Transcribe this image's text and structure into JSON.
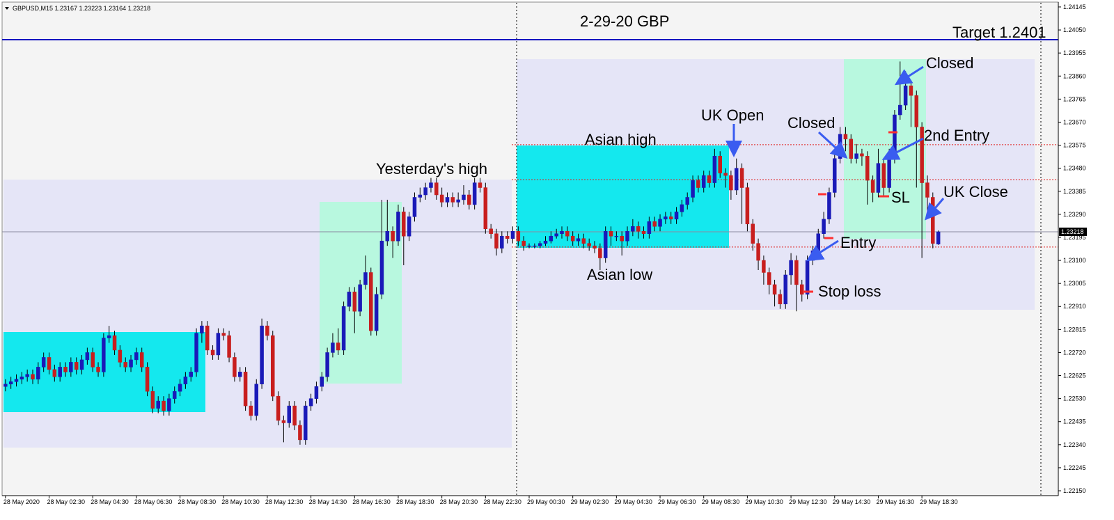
{
  "header": "GBPUSD,M15  1.23167 1.23223 1.23164 1.23218",
  "chart_data": {
    "type": "candlestick",
    "title": "2-29-20  GBP",
    "up_color": "#1a1ab8",
    "down_color": "#c81e1e",
    "open": [
      1.2258,
      1.2259,
      1.226,
      1.2261,
      1.2262,
      1.2263,
      1.2261,
      1.2266,
      1.227,
      1.2265,
      1.2262,
      1.2266,
      1.2264,
      1.2268,
      1.2265,
      1.2269,
      1.2272,
      1.2266,
      1.2264,
      1.2278,
      1.2279,
      1.2273,
      1.2268,
      1.2266,
      1.2269,
      1.2272,
      1.2266,
      1.2256,
      1.2249,
      1.2252,
      1.2248,
      1.2253,
      1.2256,
      1.2259,
      1.2262,
      1.2264,
      1.228,
      1.2283,
      1.2273,
      1.2271,
      1.228,
      1.2279,
      1.227,
      1.2262,
      1.2264,
      1.225,
      1.2246,
      1.2259,
      1.2283,
      1.2279,
      1.2254,
      1.2244,
      1.2243,
      1.225,
      1.2242,
      1.2236,
      1.225,
      1.2253,
      1.2258,
      1.2262,
      1.2272,
      1.2276,
      1.2273,
      1.2291,
      1.2297,
      1.2289,
      1.23,
      1.2305,
      1.2281,
      1.2296,
      1.2318,
      1.2322,
      1.2318,
      1.233,
      1.232,
      1.2328,
      1.2336,
      1.2337,
      1.234,
      1.2342,
      1.2337,
      1.2334,
      1.2336,
      1.2334,
      1.2335,
      1.2337,
      1.2333,
      1.2342,
      1.234,
      1.2323,
      1.2321,
      1.2315,
      1.232,
      1.2319,
      1.2322,
      1.2318,
      1.2316,
      1.2316,
      1.2316,
      1.2317,
      1.2318,
      1.232,
      1.2321,
      1.2322,
      1.232,
      1.2318,
      1.2319,
      1.2317,
      1.2316,
      1.2315,
      1.2311,
      1.2322,
      1.232,
      1.232,
      1.2318,
      1.2322,
      1.2324,
      1.2322,
      1.2321,
      1.2326,
      1.2324,
      1.2327,
      1.2328,
      1.2327,
      1.233,
      1.2333,
      1.2336,
      1.2343,
      1.234,
      1.2345,
      1.2342,
      1.2353,
      1.2346,
      1.2345,
      1.2339,
      1.2348,
      1.234,
      1.2325,
      1.2317,
      1.231,
      1.2305,
      1.23,
      1.2296,
      1.2292,
      1.2304,
      1.231,
      1.23,
      1.2296,
      1.231,
      1.2314,
      1.2321,
      1.2327,
      1.2338,
      1.2352,
      1.2362,
      1.236,
      1.2352,
      1.2354,
      1.2353,
      1.2343,
      1.2338,
      1.235,
      1.234,
      1.2352,
      1.237,
      1.2374,
      1.2382,
      1.2378,
      1.2365,
      1.2342,
      1.2336,
      1.23167
    ],
    "high": [
      1.2261,
      1.2262,
      1.2263,
      1.2264,
      1.2265,
      1.2265,
      1.2268,
      1.2272,
      1.2272,
      1.2267,
      1.2268,
      1.2268,
      1.227,
      1.227,
      1.2271,
      1.2274,
      1.2274,
      1.2268,
      1.228,
      1.2283,
      1.2281,
      1.2275,
      1.227,
      1.2271,
      1.2274,
      1.2274,
      1.2268,
      1.2258,
      1.2254,
      1.2254,
      1.2255,
      1.2258,
      1.2261,
      1.2264,
      1.2266,
      1.2282,
      1.2285,
      1.2285,
      1.2275,
      1.2282,
      1.2282,
      1.2281,
      1.2272,
      1.2266,
      1.2266,
      1.2252,
      1.2261,
      1.2286,
      1.2285,
      1.2281,
      1.2256,
      1.2246,
      1.2252,
      1.2252,
      1.2244,
      1.2252,
      1.2255,
      1.226,
      1.2264,
      1.2274,
      1.228,
      1.2282,
      1.2293,
      1.2299,
      1.2299,
      1.2302,
      1.2312,
      1.2307,
      1.2299,
      1.2335,
      1.2335,
      1.2324,
      1.2333,
      1.2332,
      1.233,
      1.2338,
      1.234,
      1.2342,
      1.2344,
      1.2344,
      1.234,
      1.2338,
      1.2338,
      1.2338,
      1.2341,
      1.2339,
      1.2344,
      1.2344,
      1.2342,
      1.2325,
      1.2323,
      1.2322,
      1.2322,
      1.2324,
      1.2324,
      1.232,
      1.2317,
      1.2317,
      1.2318,
      1.232,
      1.2322,
      1.2323,
      1.2324,
      1.2324,
      1.2322,
      1.2321,
      1.2321,
      1.2319,
      1.2318,
      1.2317,
      1.2324,
      1.2324,
      1.2322,
      1.2322,
      1.2324,
      1.2327,
      1.2326,
      1.2324,
      1.2328,
      1.2328,
      1.2329,
      1.233,
      1.233,
      1.2332,
      1.2335,
      1.2338,
      1.2345,
      1.2345,
      1.2347,
      1.2347,
      1.2356,
      1.2355,
      1.2348,
      1.2347,
      1.2352,
      1.235,
      1.2342,
      1.2327,
      1.2319,
      1.2312,
      1.2307,
      1.2302,
      1.2298,
      1.2306,
      1.2313,
      1.2312,
      1.2302,
      1.2312,
      1.2316,
      1.2323,
      1.233,
      1.234,
      1.2355,
      1.2365,
      1.2365,
      1.2362,
      1.2358,
      1.2356,
      1.2355,
      1.2345,
      1.2356,
      1.2352,
      1.2356,
      1.2372,
      1.2392,
      1.2388,
      1.2384,
      1.238,
      1.2367,
      1.2345,
      1.2338,
      1.23223
    ],
    "low": [
      1.2256,
      1.2257,
      1.2258,
      1.2259,
      1.226,
      1.2259,
      1.2259,
      1.2264,
      1.2263,
      1.226,
      1.226,
      1.2262,
      1.2262,
      1.2263,
      1.2263,
      1.2267,
      1.2264,
      1.2262,
      1.2262,
      1.2276,
      1.2271,
      1.2266,
      1.2264,
      1.2264,
      1.2267,
      1.2264,
      1.2254,
      1.2247,
      1.2247,
      1.2246,
      1.2246,
      1.2251,
      1.2254,
      1.2257,
      1.226,
      1.2262,
      1.2276,
      1.2271,
      1.2269,
      1.2269,
      1.2277,
      1.2268,
      1.226,
      1.226,
      1.2248,
      1.2244,
      1.2244,
      1.2257,
      1.2277,
      1.2252,
      1.2242,
      1.2235,
      1.2241,
      1.224,
      1.2234,
      1.2234,
      1.2248,
      1.2251,
      1.2256,
      1.226,
      1.227,
      1.2271,
      1.2271,
      1.2289,
      1.228,
      1.2287,
      1.2298,
      1.2279,
      1.2279,
      1.2294,
      1.2316,
      1.2311,
      1.2316,
      1.2308,
      1.2318,
      1.2326,
      1.2334,
      1.2335,
      1.2338,
      1.2335,
      1.2332,
      1.2332,
      1.2332,
      1.2332,
      1.2333,
      1.2331,
      1.2331,
      1.2338,
      1.2321,
      1.2319,
      1.2312,
      1.2313,
      1.2317,
      1.2317,
      1.2316,
      1.2314,
      1.2315,
      1.2315,
      1.2315,
      1.2316,
      1.2317,
      1.2319,
      1.2319,
      1.2318,
      1.2316,
      1.2316,
      1.2315,
      1.2314,
      1.2313,
      1.2306,
      1.2309,
      1.2316,
      1.2318,
      1.2312,
      1.2316,
      1.232,
      1.2319,
      1.2319,
      1.2319,
      1.2322,
      1.2322,
      1.2325,
      1.2325,
      1.2325,
      1.2328,
      1.2331,
      1.2334,
      1.2338,
      1.2338,
      1.234,
      1.234,
      1.2344,
      1.234,
      1.2335,
      1.2337,
      1.2325,
      1.2322,
      1.2314,
      1.2306,
      1.23,
      1.2296,
      1.2291,
      1.229,
      1.229,
      1.23,
      1.2289,
      1.2293,
      1.2294,
      1.2308,
      1.2312,
      1.2319,
      1.2325,
      1.2336,
      1.235,
      1.2355,
      1.235,
      1.235,
      1.2349,
      1.2333,
      1.2334,
      1.2336,
      1.2336,
      1.2338,
      1.235,
      1.2368,
      1.2372,
      1.2365,
      1.234,
      1.2311,
      1.233,
      1.2315,
      1.23164
    ],
    "close": [
      1.2259,
      1.226,
      1.2261,
      1.2262,
      1.2263,
      1.2261,
      1.2266,
      1.227,
      1.2265,
      1.2262,
      1.2266,
      1.2264,
      1.2268,
      1.2265,
      1.2269,
      1.2272,
      1.2266,
      1.2264,
      1.2278,
      1.2279,
      1.2273,
      1.2268,
      1.2266,
      1.2269,
      1.2272,
      1.2266,
      1.2256,
      1.2249,
      1.2252,
      1.2248,
      1.2253,
      1.2256,
      1.2259,
      1.2262,
      1.2264,
      1.228,
      1.2283,
      1.2273,
      1.2271,
      1.228,
      1.2279,
      1.227,
      1.2262,
      1.2264,
      1.225,
      1.2246,
      1.2259,
      1.2283,
      1.2279,
      1.2254,
      1.2244,
      1.2243,
      1.225,
      1.2242,
      1.2236,
      1.225,
      1.2253,
      1.2258,
      1.2262,
      1.2272,
      1.2276,
      1.2273,
      1.2291,
      1.2297,
      1.2289,
      1.23,
      1.2305,
      1.2281,
      1.2296,
      1.2318,
      1.2322,
      1.2318,
      1.233,
      1.232,
      1.2328,
      1.2336,
      1.2337,
      1.234,
      1.2342,
      1.2337,
      1.2334,
      1.2336,
      1.2334,
      1.2335,
      1.2337,
      1.2333,
      1.2342,
      1.234,
      1.2323,
      1.2321,
      1.2315,
      1.232,
      1.2319,
      1.2322,
      1.2318,
      1.2316,
      1.2316,
      1.2316,
      1.2317,
      1.2318,
      1.232,
      1.2321,
      1.2322,
      1.232,
      1.2318,
      1.2319,
      1.2317,
      1.2316,
      1.2315,
      1.2311,
      1.2322,
      1.232,
      1.232,
      1.2318,
      1.2322,
      1.2324,
      1.2322,
      1.2321,
      1.2326,
      1.2324,
      1.2327,
      1.2328,
      1.2327,
      1.233,
      1.2333,
      1.2336,
      1.2343,
      1.234,
      1.2345,
      1.2342,
      1.2353,
      1.2346,
      1.2345,
      1.2339,
      1.2348,
      1.234,
      1.2325,
      1.2317,
      1.231,
      1.2305,
      1.23,
      1.2296,
      1.2292,
      1.2304,
      1.231,
      1.23,
      1.2296,
      1.231,
      1.2314,
      1.2321,
      1.2327,
      1.2338,
      1.2352,
      1.2362,
      1.236,
      1.2352,
      1.2354,
      1.2353,
      1.2343,
      1.2338,
      1.235,
      1.234,
      1.2352,
      1.237,
      1.2374,
      1.2382,
      1.2378,
      1.2365,
      1.2342,
      1.2336,
      1.2317,
      1.23218
    ],
    "ylim": [
      1.2213,
      1.24165
    ],
    "yticks": [
      1.24145,
      {
        "value": 1.2405,
        "label": "1.24050"
      },
      1.23955,
      {
        "value": 1.2386,
        "label": "1.23860"
      },
      1.23765,
      {
        "value": 1.2367,
        "label": "1.23670"
      },
      1.23575,
      {
        "value": 1.2348,
        "label": "1.23480"
      },
      1.23385,
      {
        "value": 1.2329,
        "label": "1.23290"
      },
      1.23195,
      {
        "value": 1.231,
        "label": "1.23100"
      },
      1.23005,
      {
        "value": 1.2291,
        "label": "1.22910"
      },
      1.22815,
      {
        "value": 1.2272,
        "label": "1.22720"
      },
      1.22625,
      {
        "value": 1.2253,
        "label": "1.22530"
      },
      1.22435,
      {
        "value": 1.2234,
        "label": "1.22340"
      },
      1.22245,
      {
        "value": 1.2215,
        "label": "1.22150"
      }
    ],
    "xlim": [
      -1,
      193
    ],
    "xticks": [
      {
        "value": 0,
        "label": "28 May 2020"
      },
      {
        "value": 8,
        "label": "28 May 02:30"
      },
      {
        "value": 16,
        "label": "28 May 04:30"
      },
      {
        "value": 24,
        "label": "28 May 06:30"
      },
      {
        "value": 32,
        "label": "28 May 08:30"
      },
      {
        "value": 40,
        "label": "28 May 10:30"
      },
      {
        "value": 48,
        "label": "28 May 12:30"
      },
      {
        "value": 56,
        "label": "28 May 14:30"
      },
      {
        "value": 64,
        "label": "28 May 16:30"
      },
      {
        "value": 72,
        "label": "28 May 18:30"
      },
      {
        "value": 80,
        "label": "28 May 20:30"
      },
      {
        "value": 88,
        "label": "28 May 22:30"
      },
      {
        "value": 96,
        "label": "29 May 00:30"
      },
      {
        "value": 104,
        "label": "29 May 02:30"
      },
      {
        "value": 112,
        "label": "29 May 04:30"
      },
      {
        "value": 120,
        "label": "29 May 06:30"
      },
      {
        "value": 128,
        "label": "29 May 08:30"
      },
      {
        "value": 136,
        "label": "29 May 10:30"
      },
      {
        "value": 144,
        "label": "29 May 12:30"
      },
      {
        "value": 152,
        "label": "29 May 14:30"
      },
      {
        "value": 160,
        "label": "29 May 16:30"
      },
      {
        "value": 168,
        "label": "29 May 18:30"
      }
    ],
    "current_price": 1.23218,
    "target": 1.2401,
    "levels": [
      1.23577,
      1.23433,
      1.23155
    ],
    "annotations": [
      "Target  1.2401",
      "Yesterday's high",
      "Asian high",
      "Asian low",
      "UK Open",
      "Closed",
      "Closed",
      "2nd Entry",
      "UK Close",
      "SL",
      "Entry",
      "Stop loss"
    ]
  }
}
